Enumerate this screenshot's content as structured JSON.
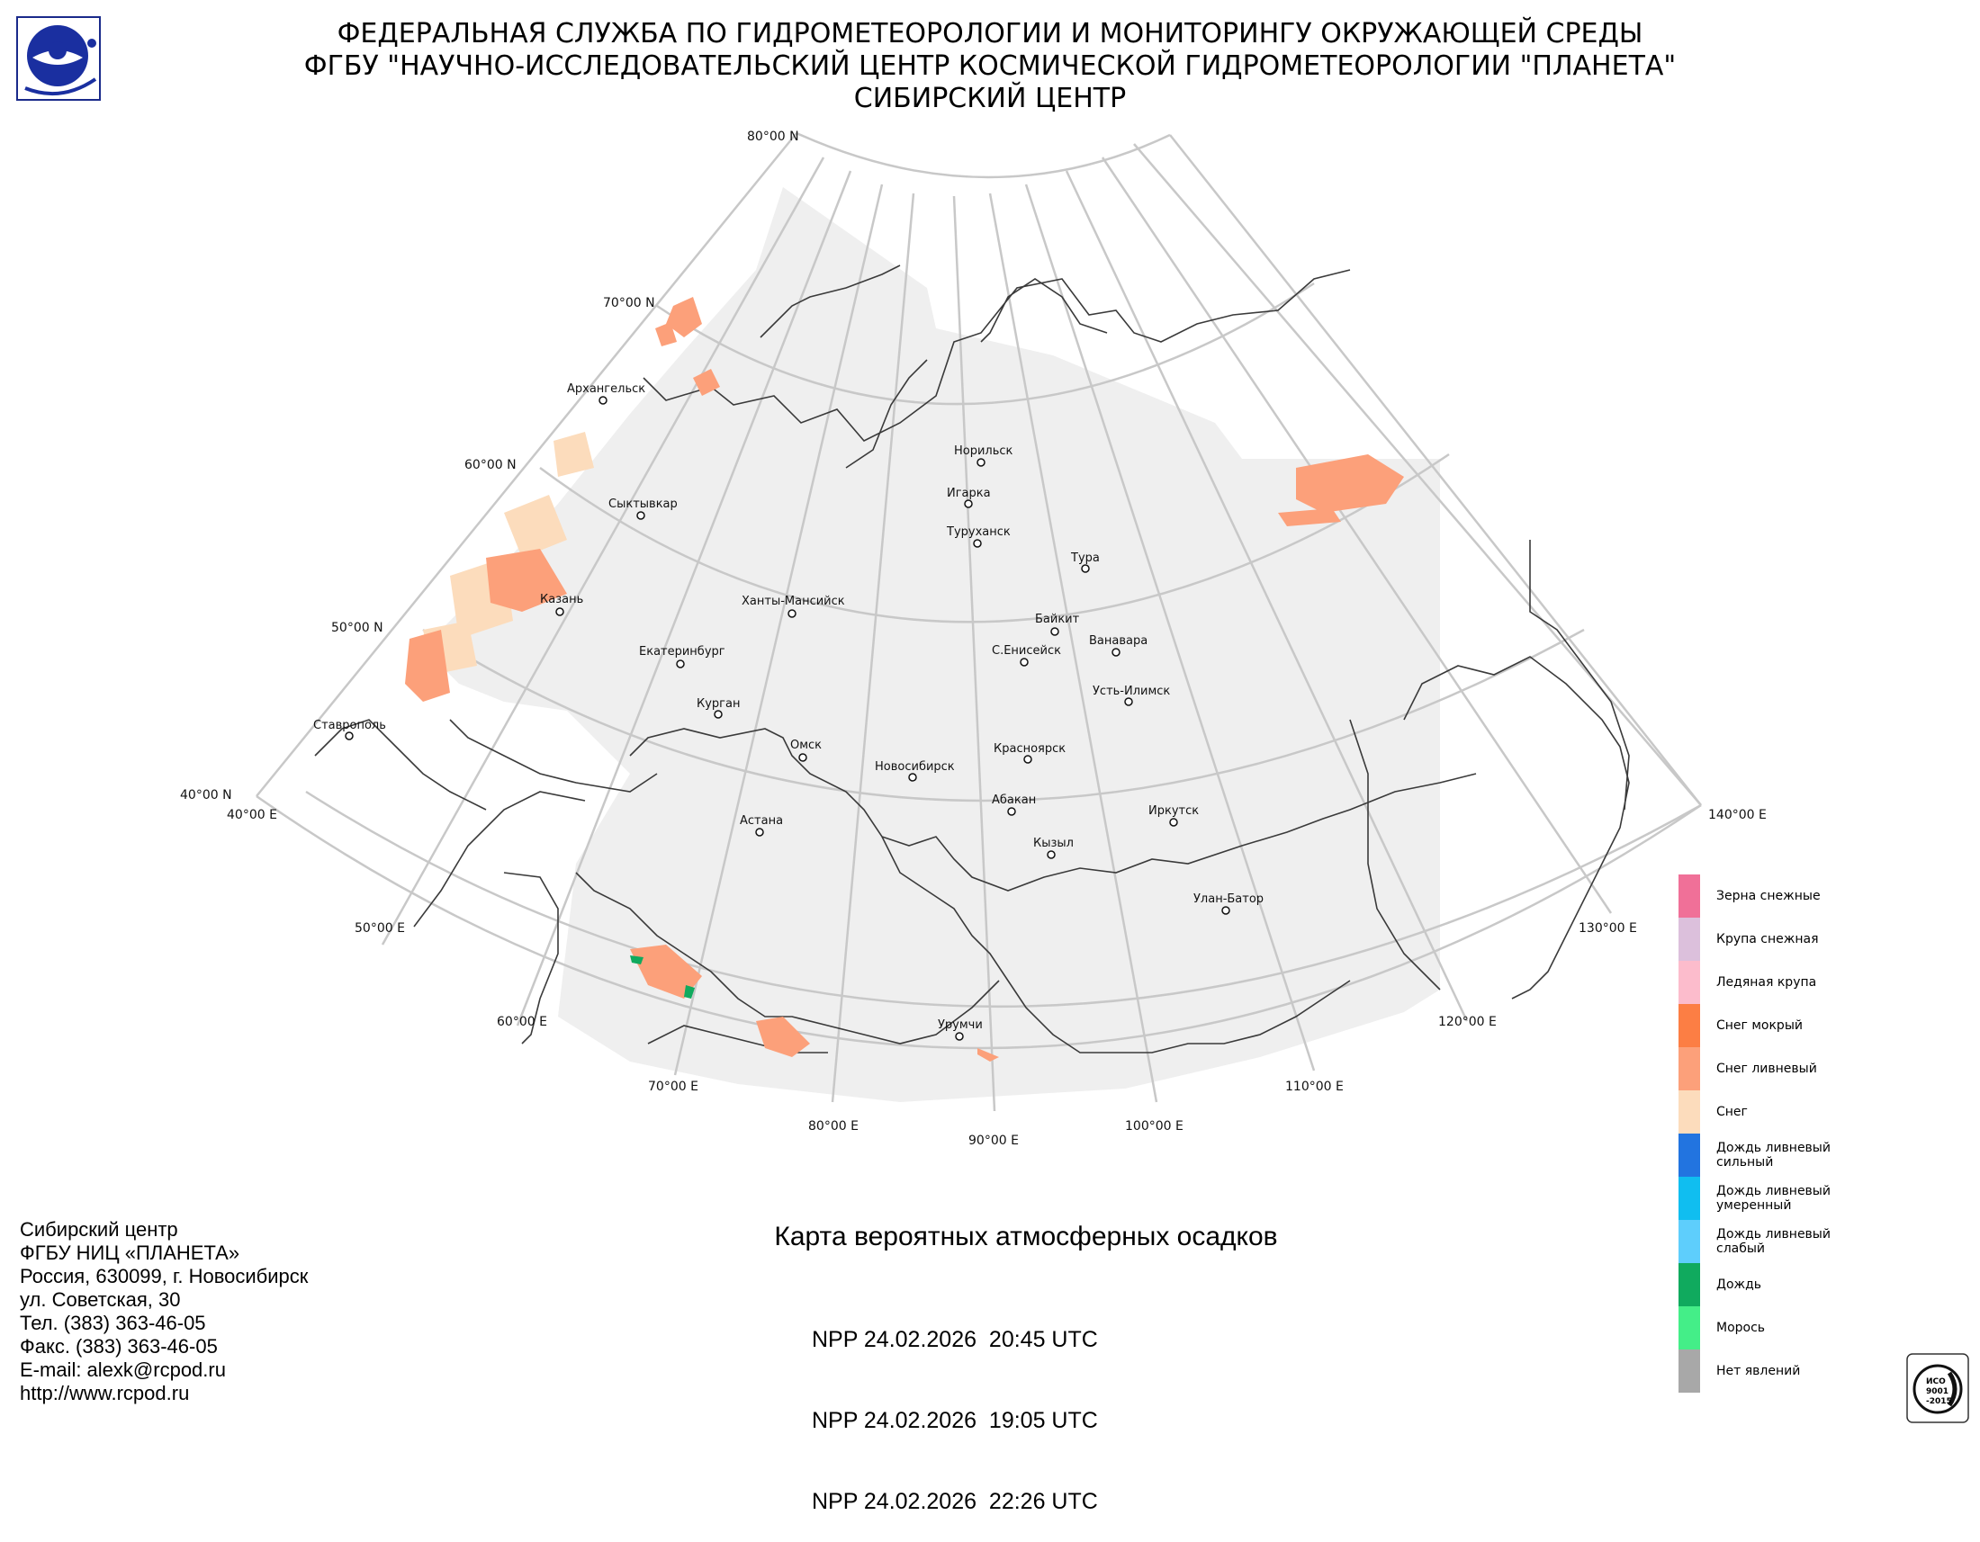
{
  "header": {
    "line1": "ФЕДЕРАЛЬНАЯ СЛУЖБА ПО ГИДРОМЕТЕОРОЛОГИИ И МОНИТОРИНГУ ОКРУЖАЮЩЕЙ СРЕДЫ",
    "line2": "ФГБУ \"НАУЧНО-ИССЛЕДОВАТЕЛЬСКИЙ ЦЕНТР КОСМИЧЕСКОЙ ГИДРОМЕТЕОРОЛОГИИ \"ПЛАНЕТА\"",
    "line3": "СИБИРСКИЙ ЦЕНТР"
  },
  "map": {
    "latitude_labels": [
      "80°00 N",
      "70°00 N",
      "60°00 N",
      "50°00 N",
      "40°00 N"
    ],
    "longitude_labels": [
      "40°00 E",
      "50°00 E",
      "60°00 E",
      "70°00 E",
      "80°00 E",
      "90°00 E",
      "100°00 E",
      "110°00 E",
      "120°00 E",
      "130°00 E",
      "140°00 E"
    ],
    "cities": [
      "Архангельск",
      "Сыктывкар",
      "Казань",
      "Ставрополь",
      "Екатеринбург",
      "Курган",
      "Ханты-Мансийск",
      "Омск",
      "Новосибирск",
      "Астана",
      "Норильск",
      "Игарка",
      "Туруханск",
      "Тура",
      "Байкит",
      "С.Енисейск",
      "Ванавара",
      "Усть-Илимск",
      "Красноярск",
      "Абакан",
      "Кызыл",
      "Иркутск",
      "Улан-Батор",
      "Урумчи"
    ]
  },
  "legend": [
    {
      "label": "Зерна снежные",
      "color": "#f07098"
    },
    {
      "label": "Крупа снежная",
      "color": "#dcc0dc"
    },
    {
      "label": "Ледяная крупа",
      "color": "#fcbccc"
    },
    {
      "label": "Снег мокрый",
      "color": "#fc7e44"
    },
    {
      "label": "Снег ливневый",
      "color": "#fca07a"
    },
    {
      "label": "Снег",
      "color": "#fcdcbc"
    },
    {
      "label": "Дождь ливневый сильный",
      "color": "#2274e0"
    },
    {
      "label": "Дождь ливневый умеренный",
      "color": "#10bef0"
    },
    {
      "label": "Дождь ливневый слабый",
      "color": "#5ecefc"
    },
    {
      "label": "Дождь",
      "color": "#10aa5e"
    },
    {
      "label": "Морось",
      "color": "#44ee88"
    },
    {
      "label": "Нет явлений",
      "color": "#a8a8a8"
    }
  ],
  "footer": {
    "address": [
      "Сибирский центр",
      "ФГБУ НИЦ «ПЛАНЕТА»",
      "Россия, 630099, г. Новосибирск",
      "ул. Советская, 30",
      "Тел. (383) 363-46-05",
      "Факс. (383) 363-46-05",
      "E-mail: alexk@rcpod.ru",
      "http://www.rcpod.ru"
    ],
    "title": "Карта вероятных атмосферных осадков",
    "passes": [
      "NPP 24.02.2026  20:45 UTC",
      "NPP 24.02.2026  19:05 UTC",
      "NPP 24.02.2026  22:26 UTC"
    ]
  },
  "iso_badge": {
    "line1": "ИСО",
    "line2": "9001",
    "line3": "-2015"
  },
  "colors": {
    "coverage": "#efefef",
    "grid": "#c8c8c8",
    "coast": "#3a3a3a"
  }
}
